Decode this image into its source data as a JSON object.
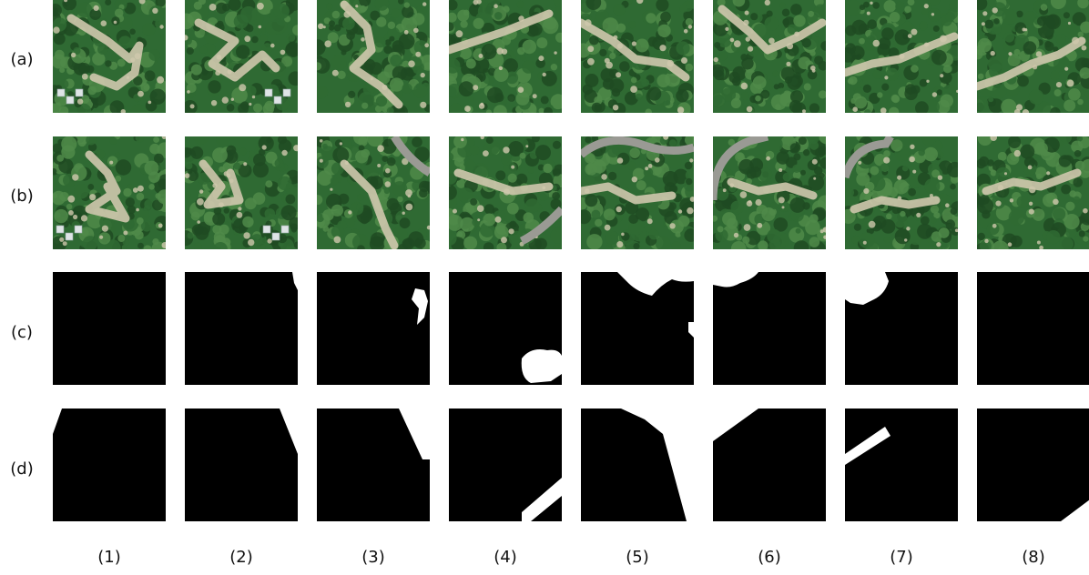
{
  "rows": [
    {
      "label": "(a)",
      "kind": "aerial-photo"
    },
    {
      "label": "(b)",
      "kind": "aerial-photo"
    },
    {
      "label": "(c)",
      "kind": "binary-mask"
    },
    {
      "label": "(d)",
      "kind": "binary-mask"
    }
  ],
  "columns": [
    "(1)",
    "(2)",
    "(3)",
    "(4)",
    "(5)",
    "(6)",
    "(7)",
    "(8)"
  ],
  "colors": {
    "background": "#ffffff",
    "mask_background": "#000000",
    "mask_foreground": "#ffffff",
    "forest_dark": "#1f4a22",
    "forest_mid": "#2f6a33",
    "forest_light": "#4f8a49",
    "bare_ground": "#cfc8ad",
    "road": "#9a9a94",
    "building": "#dfe4e6"
  }
}
